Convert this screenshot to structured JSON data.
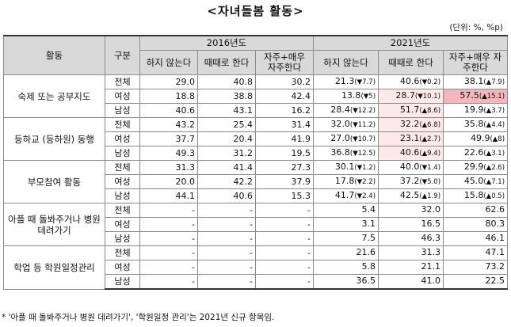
{
  "title": "<자녀돌봄 활동>",
  "unit": "(단위: %, %p)",
  "headers": {
    "activity": "활동",
    "group": "구분",
    "year2016": "2016년도",
    "year2021": "2021년도",
    "col_not": "하지 않는다",
    "col_sometimes": "때때로 한다",
    "col_often": "자주+매우 자주한다"
  },
  "rows": [
    {
      "activity": "숙제 또는 공부지도",
      "cells": [
        {
          "g": "전체",
          "v16": [
            "29.0",
            "40.8",
            "30.2"
          ],
          "v21": [
            [
              "21.3",
              "(▼7.7)"
            ],
            [
              "40.6",
              "(▼0.2)"
            ],
            [
              "38.1",
              "(▲7.9)"
            ]
          ]
        },
        {
          "g": "여성",
          "v16": [
            "18.8",
            "38.8",
            "42.4"
          ],
          "v21": [
            [
              "13.8",
              "(▼5)"
            ],
            [
              "28.7",
              "(▼10.1)"
            ],
            [
              "57.5",
              "(▲15.1)"
            ]
          ]
        },
        {
          "g": "남성",
          "v16": [
            "40.6",
            "43.1",
            "16.2"
          ],
          "v21": [
            [
              "28.4",
              "(▼12.2)"
            ],
            [
              "51.7",
              "(▲8.6)"
            ],
            [
              "19.9",
              "(▲3.7)"
            ]
          ]
        }
      ]
    },
    {
      "activity": "등하교 (등하원) 동행",
      "cells": [
        {
          "g": "전체",
          "v16": [
            "43.2",
            "25.4",
            "31.4"
          ],
          "v21": [
            [
              "32.0",
              "(▼11.2)"
            ],
            [
              "32.2",
              "(▲6.8)"
            ],
            [
              "35.8",
              "(▲4.4)"
            ]
          ]
        },
        {
          "g": "여성",
          "v16": [
            "37.7",
            "20.4",
            "41.9"
          ],
          "v21": [
            [
              "27.0",
              "(▼10.7)"
            ],
            [
              "23.1",
              "(▲2.7)"
            ],
            [
              "49.9",
              "(▲8)"
            ]
          ]
        },
        {
          "g": "남성",
          "v16": [
            "49.3",
            "31.2",
            "19.5"
          ],
          "v21": [
            [
              "36.8",
              "(▼12.5)"
            ],
            [
              "40.6",
              "(▲9.4)"
            ],
            [
              "22.6",
              "(▲3.1)"
            ]
          ]
        }
      ]
    },
    {
      "activity": "부모참여 활동",
      "cells": [
        {
          "g": "전체",
          "v16": [
            "31.3",
            "41.4",
            "27.3"
          ],
          "v21": [
            [
              "30.1",
              "(▼1.2)"
            ],
            [
              "40.0",
              "(▼1.4)"
            ],
            [
              "29.9",
              "(▲2.6)"
            ]
          ]
        },
        {
          "g": "여성",
          "v16": [
            "20.0",
            "42.2",
            "37.9"
          ],
          "v21": [
            [
              "17.8",
              "(▼2.2)"
            ],
            [
              "37.2",
              "(▼5.0)"
            ],
            [
              "45.0",
              "(▲7.1)"
            ]
          ]
        },
        {
          "g": "남성",
          "v16": [
            "44.1",
            "40.6",
            "15.3"
          ],
          "v21": [
            [
              "41.7",
              "(▼2.4)"
            ],
            [
              "42.5",
              "(▲1.9)"
            ],
            [
              "15.8",
              "(▲0.5)"
            ]
          ]
        }
      ]
    },
    {
      "activity": "아플 때 돌봐주거나 병원 데려가기",
      "cells": [
        {
          "g": "전체",
          "v16": [
            "-",
            "-",
            "-"
          ],
          "v21": [
            [
              "5.4",
              ""
            ],
            [
              "32.0",
              ""
            ],
            [
              "62.6",
              ""
            ]
          ]
        },
        {
          "g": "여성",
          "v16": [
            "-",
            "-",
            "-"
          ],
          "v21": [
            [
              "3.1",
              ""
            ],
            [
              "16.5",
              ""
            ],
            [
              "80.3",
              ""
            ]
          ]
        },
        {
          "g": "남성",
          "v16": [
            "-",
            "-",
            "-"
          ],
          "v21": [
            [
              "7.5",
              ""
            ],
            [
              "46.3",
              ""
            ],
            [
              "46.1",
              ""
            ]
          ]
        }
      ]
    },
    {
      "activity": "학업 등 학원일정관리",
      "cells": [
        {
          "g": "전체",
          "v16": [
            "-",
            "-",
            "-"
          ],
          "v21": [
            [
              "21.6",
              ""
            ],
            [
              "31.3",
              ""
            ],
            [
              "47.1",
              ""
            ]
          ]
        },
        {
          "g": "여성",
          "v16": [
            "-",
            "-",
            "-"
          ],
          "v21": [
            [
              "5.8",
              ""
            ],
            [
              "21.1",
              ""
            ],
            [
              "73.2",
              ""
            ]
          ]
        },
        {
          "g": "남성",
          "v16": [
            "-",
            "-",
            "-"
          ],
          "v21": [
            [
              "36.5",
              ""
            ],
            [
              "41.0",
              ""
            ],
            [
              "22.5",
              ""
            ]
          ]
        }
      ]
    }
  ],
  "highlight": {
    "pink": [
      [
        0,
        1,
        1
      ],
      [
        0,
        2,
        1
      ],
      [
        1,
        0,
        1
      ],
      [
        1,
        1,
        1
      ],
      [
        1,
        2,
        1
      ]
    ],
    "red": [
      [
        0,
        1,
        2
      ]
    ]
  },
  "note": "* '아플 때 돌봐주거나 병원 데려가기', '학원일정 관리'는 2021년 신규 항목임."
}
